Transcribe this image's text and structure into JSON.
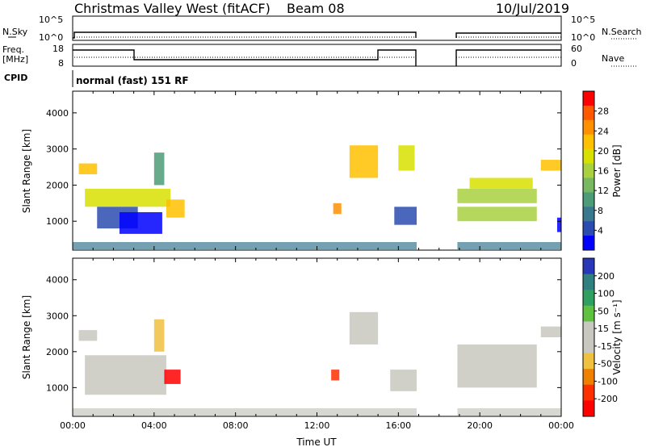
{
  "header": {
    "station": "Christmas Valley West (fitACF)",
    "beam": "Beam 08",
    "date": "10/Jul/2019"
  },
  "small_panels": {
    "nsky_label": "N.Sky",
    "nsky_ticks": [
      "10^5",
      "10^0"
    ],
    "nsearch_label": "N.Search",
    "nsearch_ticks": [
      "10^5",
      "10^0"
    ],
    "freq_label_1": "Freq.",
    "freq_label_2": "[MHz]",
    "freq_ticks": [
      "18",
      "8"
    ],
    "nave_label": "Nave",
    "nave_ticks": [
      "60",
      "0"
    ],
    "cpid_label": "CPID",
    "cpid_text": "normal (fast) 151 RF"
  },
  "chart_data": [
    {
      "type": "heatmap",
      "name": "power-panel",
      "ylabel": "Slant Range [km]",
      "x_ticks": [
        "00:00",
        "04:00",
        "08:00",
        "12:00",
        "16:00",
        "20:00",
        "00:00"
      ],
      "y_ticks": [
        1000,
        2000,
        3000,
        4000
      ],
      "ylim": [
        200,
        4600
      ],
      "colorbar_label": "Power [dB]",
      "colorbar_ticks": [
        "28",
        "24",
        "20",
        "16",
        "12",
        "8",
        "4"
      ],
      "colorbar_colors": [
        "#ff0000",
        "#ff5a00",
        "#ff9000",
        "#ffc000",
        "#d8e000",
        "#a8d040",
        "#78b860",
        "#4c9c78",
        "#3a7890",
        "#2a4cb0",
        "#0000ff"
      ],
      "blobs": [
        {
          "t0": 0.3,
          "t1": 1.2,
          "r0": 2300,
          "r1": 2600,
          "c": 3
        },
        {
          "t0": 0.6,
          "t1": 4.8,
          "r0": 1400,
          "r1": 1900,
          "c": 4
        },
        {
          "t0": 1.2,
          "t1": 3.2,
          "r0": 800,
          "r1": 1400,
          "c": 9
        },
        {
          "t0": 2.3,
          "t1": 4.4,
          "r0": 650,
          "r1": 1250,
          "c": 10
        },
        {
          "t0": 4.0,
          "t1": 4.5,
          "r0": 2000,
          "r1": 2900,
          "c": 7
        },
        {
          "t0": 4.6,
          "t1": 5.5,
          "r0": 1100,
          "r1": 1600,
          "c": 3
        },
        {
          "t0": 13.6,
          "t1": 15.0,
          "r0": 2200,
          "r1": 3100,
          "c": 3
        },
        {
          "t0": 12.8,
          "t1": 13.2,
          "r0": 1200,
          "r1": 1500,
          "c": 2
        },
        {
          "t0": 15.8,
          "t1": 16.9,
          "r0": 900,
          "r1": 1400,
          "c": 9
        },
        {
          "t0": 16.0,
          "t1": 16.8,
          "r0": 2400,
          "r1": 3100,
          "c": 4
        },
        {
          "t0": 18.9,
          "t1": 22.8,
          "r0": 1000,
          "r1": 1400,
          "c": 5
        },
        {
          "t0": 18.9,
          "t1": 22.8,
          "r0": 1500,
          "r1": 1900,
          "c": 5
        },
        {
          "t0": 19.5,
          "t1": 22.6,
          "r0": 1900,
          "r1": 2200,
          "c": 4
        },
        {
          "t0": 23.0,
          "t1": 24.0,
          "r0": 2400,
          "r1": 2700,
          "c": 3
        },
        {
          "t0": 23.8,
          "t1": 24.0,
          "r0": 700,
          "r1": 1100,
          "c": 10
        }
      ]
    },
    {
      "type": "heatmap",
      "name": "velocity-panel",
      "ylabel": "Slant Range [km]",
      "xlabel": "Time UT",
      "x_ticks": [
        "00:00",
        "04:00",
        "08:00",
        "12:00",
        "16:00",
        "20:00",
        "00:00"
      ],
      "y_ticks": [
        1000,
        2000,
        3000,
        4000
      ],
      "ylim": [
        200,
        4600
      ],
      "colorbar_label": "Velocity [m s⁻¹]",
      "colorbar_ticks": [
        "200",
        "100",
        "50",
        "15",
        "-15",
        "-50",
        "-100",
        "-200"
      ],
      "colorbar_colors": [
        "#2838b8",
        "#308080",
        "#30a060",
        "#60c040",
        "#c8c8c0",
        "#c8c8c0",
        "#f0c040",
        "#f08000",
        "#ff3000",
        "#ff0000"
      ],
      "blobs": [
        {
          "t0": 0.3,
          "t1": 1.2,
          "r0": 2300,
          "r1": 2600,
          "c": 4
        },
        {
          "t0": 0.6,
          "t1": 4.6,
          "r0": 800,
          "r1": 1900,
          "c": 4
        },
        {
          "t0": 4.0,
          "t1": 4.5,
          "r0": 2000,
          "r1": 2900,
          "c": 6
        },
        {
          "t0": 4.5,
          "t1": 5.3,
          "r0": 1100,
          "r1": 1500,
          "c": 9
        },
        {
          "t0": 12.7,
          "t1": 13.1,
          "r0": 1200,
          "r1": 1500,
          "c": 8
        },
        {
          "t0": 13.6,
          "t1": 15.0,
          "r0": 2200,
          "r1": 3100,
          "c": 4
        },
        {
          "t0": 15.6,
          "t1": 16.9,
          "r0": 900,
          "r1": 1500,
          "c": 4
        },
        {
          "t0": 18.9,
          "t1": 22.8,
          "r0": 1000,
          "r1": 2200,
          "c": 4
        },
        {
          "t0": 23.0,
          "t1": 24.0,
          "r0": 2400,
          "r1": 2700,
          "c": 4
        }
      ]
    }
  ],
  "colors": {
    "frame": "#000000",
    "background": "#ffffff"
  }
}
